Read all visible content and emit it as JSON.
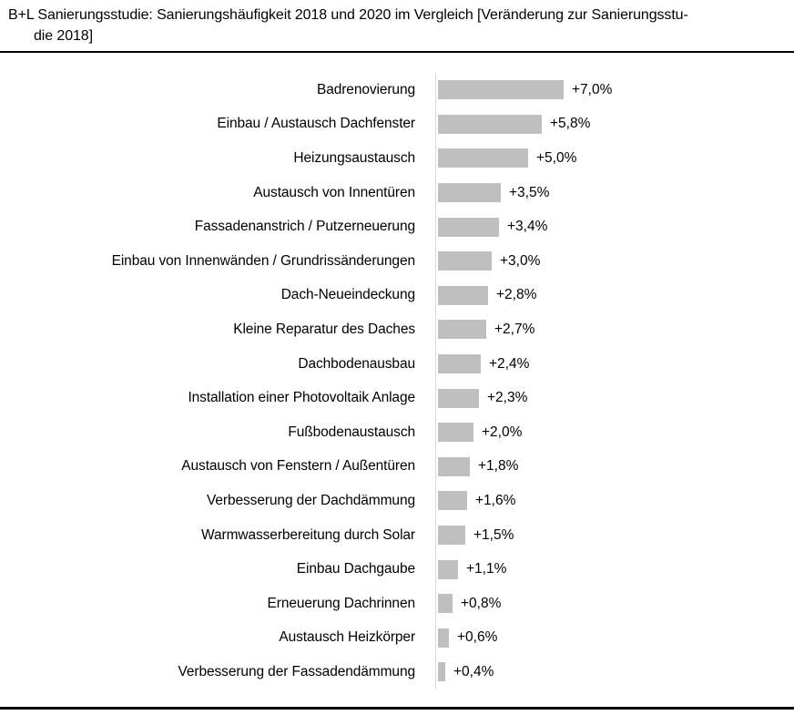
{
  "title": {
    "line1": "B+L Sanierungsstudie: Sanierungshäufigkeit 2018 und 2020 im Vergleich [Veränderung zur Sanierungsstu-",
    "line2": "die 2018]"
  },
  "chart_data": {
    "type": "bar",
    "orientation": "horizontal",
    "title": "B+L Sanierungsstudie: Sanierungshäufigkeit 2018 und 2020 im Vergleich [Veränderung zur Sanierungsstudie 2018]",
    "categories": [
      "Badrenovierung",
      "Einbau / Austausch Dachfenster",
      "Heizungsaustausch",
      "Austausch von Innentüren",
      "Fassadenanstrich / Putzerneuerung",
      "Einbau von Innenwänden / Grundrissänderungen",
      "Dach-Neueindeckung",
      "Kleine Reparatur des Daches",
      "Dachbodenausbau",
      "Installation einer Photovoltaik Anlage",
      "Fußbodenaustausch",
      "Austausch von Fenstern / Außentüren",
      "Verbesserung der Dachdämmung",
      "Warmwasserbereitung durch Solar",
      "Einbau Dachgaube",
      "Erneuerung Dachrinnen",
      "Austausch Heizkörper",
      "Verbesserung der Fassadendämmung"
    ],
    "values": [
      7.0,
      5.8,
      5.0,
      3.5,
      3.4,
      3.0,
      2.8,
      2.7,
      2.4,
      2.3,
      2.0,
      1.8,
      1.6,
      1.5,
      1.1,
      0.8,
      0.6,
      0.4
    ],
    "value_labels": [
      "+7,0%",
      "+5,8%",
      "+5,0%",
      "+3,5%",
      "+3,4%",
      "+3,0%",
      "+2,8%",
      "+2,7%",
      "+2,4%",
      "+2,3%",
      "+2,0%",
      "+1,8%",
      "+1,6%",
      "+1,5%",
      "+1,1%",
      "+0,8%",
      "+0,6%",
      "+0,4%"
    ],
    "xlabel": "",
    "ylabel": "",
    "xlim": [
      0,
      7.5
    ],
    "grid": false,
    "legend": false,
    "bar_color": "#bfbfbf",
    "axis_color": "#d9d9d9",
    "text_color": "#000000"
  }
}
